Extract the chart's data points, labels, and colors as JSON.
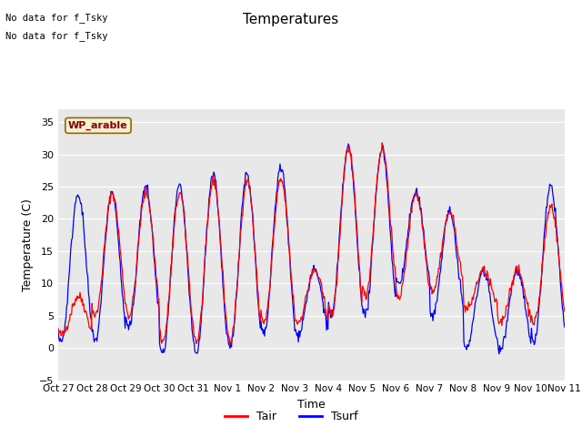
{
  "title": "Temperatures",
  "xlabel": "Time",
  "ylabel": "Temperature (C)",
  "ylim": [
    -5,
    37
  ],
  "yticks": [
    -5,
    0,
    5,
    10,
    15,
    20,
    25,
    30,
    35
  ],
  "x_tick_labels": [
    "Oct 27",
    "Oct 28",
    "Oct 29",
    "Oct 30",
    "Oct 31",
    "Nov 1",
    "Nov 2",
    "Nov 3",
    "Nov 4",
    "Nov 5",
    "Nov 6",
    "Nov 7",
    "Nov 8",
    "Nov 9",
    "Nov 10",
    "Nov 11"
  ],
  "tair_color": "red",
  "tsurf_color": "blue",
  "background_color": "#e8e8e8",
  "annotation_line1": "No data for f_Tsky",
  "annotation_line2": "No data for f_Tsky",
  "legend_label1": "Tair",
  "legend_label2": "Tsurf",
  "wp_arable_label": "WP_arable",
  "num_days": 15,
  "points_per_day": 48
}
